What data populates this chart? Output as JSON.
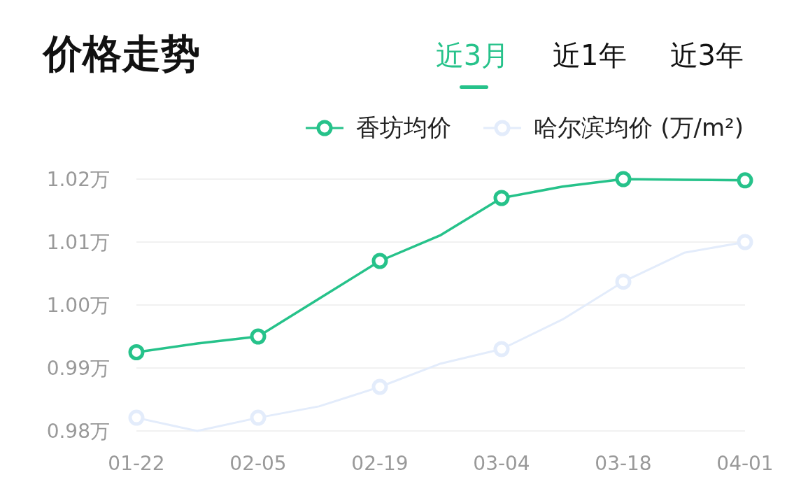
{
  "chart_data": {
    "type": "line",
    "title": "价格走势",
    "annotations": [
      "近3月",
      "近1年",
      "近3年"
    ],
    "categories": [
      "01-22",
      null,
      "02-05",
      null,
      "02-19",
      null,
      "03-04",
      null,
      "03-18",
      null,
      "04-01"
    ],
    "series": [
      {
        "name": "香坊均价",
        "color": "#26c28a",
        "values": [
          0.9925,
          0.9939,
          0.995,
          1.001,
          1.007,
          1.0111,
          1.017,
          1.0188,
          1.02,
          1.0199,
          1.0198
        ]
      },
      {
        "name": "哈尔滨均价 (万/m²)",
        "color": "#e3ecfb",
        "values": [
          0.9821,
          0.98,
          0.9821,
          0.9839,
          0.987,
          0.9907,
          0.993,
          0.9977,
          1.0037,
          1.0083,
          1.01
        ]
      }
    ],
    "ylim": [
      0.98,
      1.02
    ],
    "yticks": [
      {
        "value": 0.98,
        "label": "0.98万"
      },
      {
        "value": 0.99,
        "label": "0.99万"
      },
      {
        "value": 1.0,
        "label": "1.00万"
      },
      {
        "value": 1.01,
        "label": "1.01万"
      },
      {
        "value": 1.02,
        "label": "1.02万"
      }
    ],
    "grid": "y",
    "legend": "top right",
    "marker": "circle",
    "line_style": "solid"
  }
}
